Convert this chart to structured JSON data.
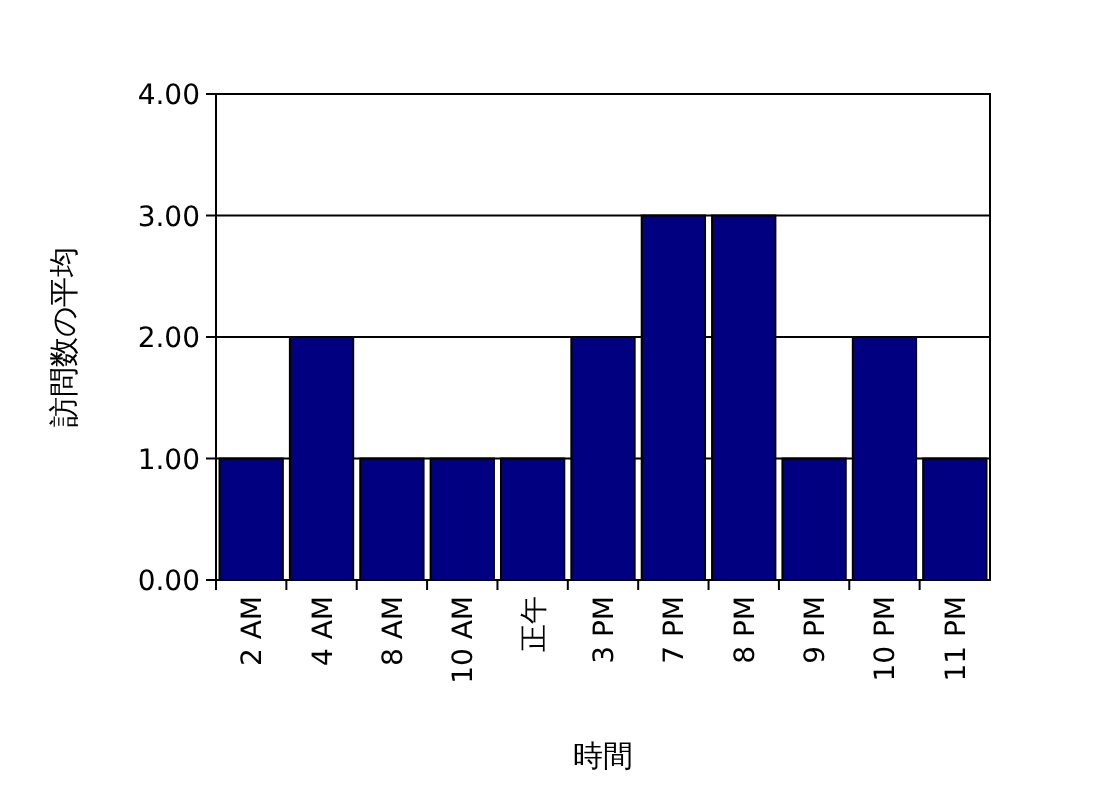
{
  "chart_data": {
    "type": "bar",
    "xlabel": "時間",
    "ylabel": "訪問数の平均",
    "categories": [
      "2 AM",
      "4 AM",
      "8 AM",
      "10 AM",
      "正午",
      "3 PM",
      "7 PM",
      "8 PM",
      "9 PM",
      "10 PM",
      "11 PM"
    ],
    "values": [
      1,
      2,
      1,
      1,
      1,
      2,
      3,
      3,
      1,
      2,
      1
    ],
    "color": "#000080",
    "ylim": [
      0,
      4
    ],
    "yticks": [
      {
        "value": 0,
        "label": "0.00"
      },
      {
        "value": 1,
        "label": "1.00"
      },
      {
        "value": 2,
        "label": "2.00"
      },
      {
        "value": 3,
        "label": "3.00"
      },
      {
        "value": 4,
        "label": "4.00"
      }
    ],
    "grid": "y"
  }
}
